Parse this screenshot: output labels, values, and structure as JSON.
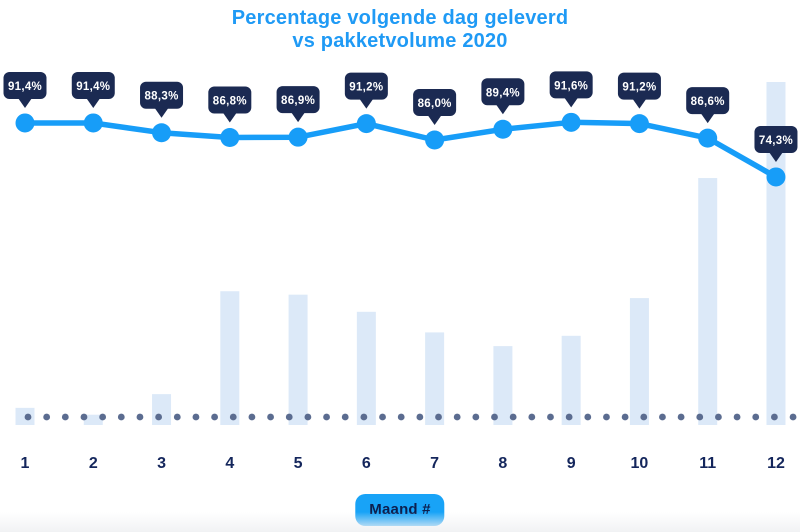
{
  "title": {
    "line1": "Percentage volgende dag geleverd",
    "line2": "vs pakketvolume 2020"
  },
  "x_axis": {
    "label": "Maand #",
    "categories": [
      "1",
      "2",
      "3",
      "4",
      "5",
      "6",
      "7",
      "8",
      "9",
      "10",
      "11",
      "12"
    ]
  },
  "chart_data": {
    "type": "line+bar",
    "title": "Percentage volgende dag geleverd vs pakketvolume 2020",
    "xlabel": "Maand #",
    "ylabel": "",
    "grid": false,
    "legend_position": "none",
    "categories": [
      1,
      2,
      3,
      4,
      5,
      6,
      7,
      8,
      9,
      10,
      11,
      12
    ],
    "series": [
      {
        "name": "Percentage volgende dag geleverd",
        "type": "line",
        "unit": "%",
        "values": [
          91.4,
          91.4,
          88.3,
          86.8,
          86.9,
          91.2,
          86.0,
          89.4,
          91.6,
          91.2,
          86.6,
          74.3
        ],
        "point_labels": [
          "91,4%",
          "91,4%",
          "88,3%",
          "86,8%",
          "86,9%",
          "91,2%",
          "86,0%",
          "89,4%",
          "91,6%",
          "91,2%",
          "86,6%",
          "74,3%"
        ]
      },
      {
        "name": "Pakketvolume 2020",
        "type": "bar",
        "unit": "relative volume (unlabeled axis, max month = 100)",
        "values": [
          5,
          3,
          9,
          39,
          38,
          33,
          27,
          23,
          26,
          37,
          72,
          100
        ]
      }
    ],
    "baseline_style": "dotted",
    "colors": {
      "title": "#1f9af5",
      "line": "#179df8",
      "marker": "#179df8",
      "bar": "#dce9f8",
      "tooltip_bg": "#1b2a52",
      "tooltip_text": "#ffffff",
      "axis_label": "#14265c",
      "baseline_dots": "#5b6c90",
      "badge_bg": "#18a3f7",
      "badge_text": "#0c1f4e"
    }
  }
}
